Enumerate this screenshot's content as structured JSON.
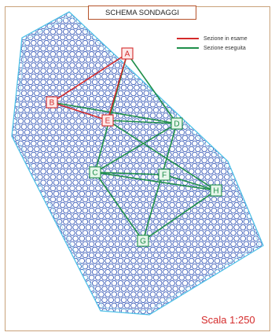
{
  "title": "SCHEMA SONDAGGI",
  "legend": {
    "items": [
      {
        "label": "Sezione in esame",
        "color": "#d42a2a"
      },
      {
        "label": "Sezione eseguita",
        "color": "#1f8f4a"
      }
    ]
  },
  "scale_label": "Scala 1:250",
  "colors": {
    "grid": "#3a5bb8",
    "outline": "#4fc2e8",
    "red_section": "#d42a2a",
    "green_section": "#1f8f4a",
    "red_marker_fill": "#fdeaea",
    "green_marker_fill": "#e6f6ea"
  },
  "markers": [
    {
      "id": "A",
      "kind": "red"
    },
    {
      "id": "B",
      "kind": "red"
    },
    {
      "id": "E",
      "kind": "red"
    },
    {
      "id": "D",
      "kind": "green"
    },
    {
      "id": "C",
      "kind": "green"
    },
    {
      "id": "F",
      "kind": "green"
    },
    {
      "id": "H",
      "kind": "green"
    },
    {
      "id": "G",
      "kind": "green"
    }
  ],
  "sections_in_exam": [
    [
      "A",
      "B"
    ],
    [
      "A",
      "E"
    ],
    [
      "B",
      "E"
    ]
  ],
  "sections_done": [
    [
      "A",
      "D"
    ],
    [
      "A",
      "C"
    ],
    [
      "B",
      "D"
    ],
    [
      "E",
      "D"
    ],
    [
      "E",
      "H"
    ],
    [
      "D",
      "C"
    ],
    [
      "D",
      "G"
    ],
    [
      "C",
      "F"
    ],
    [
      "C",
      "G"
    ],
    [
      "C",
      "H"
    ],
    [
      "F",
      "H"
    ],
    [
      "H",
      "G"
    ]
  ]
}
